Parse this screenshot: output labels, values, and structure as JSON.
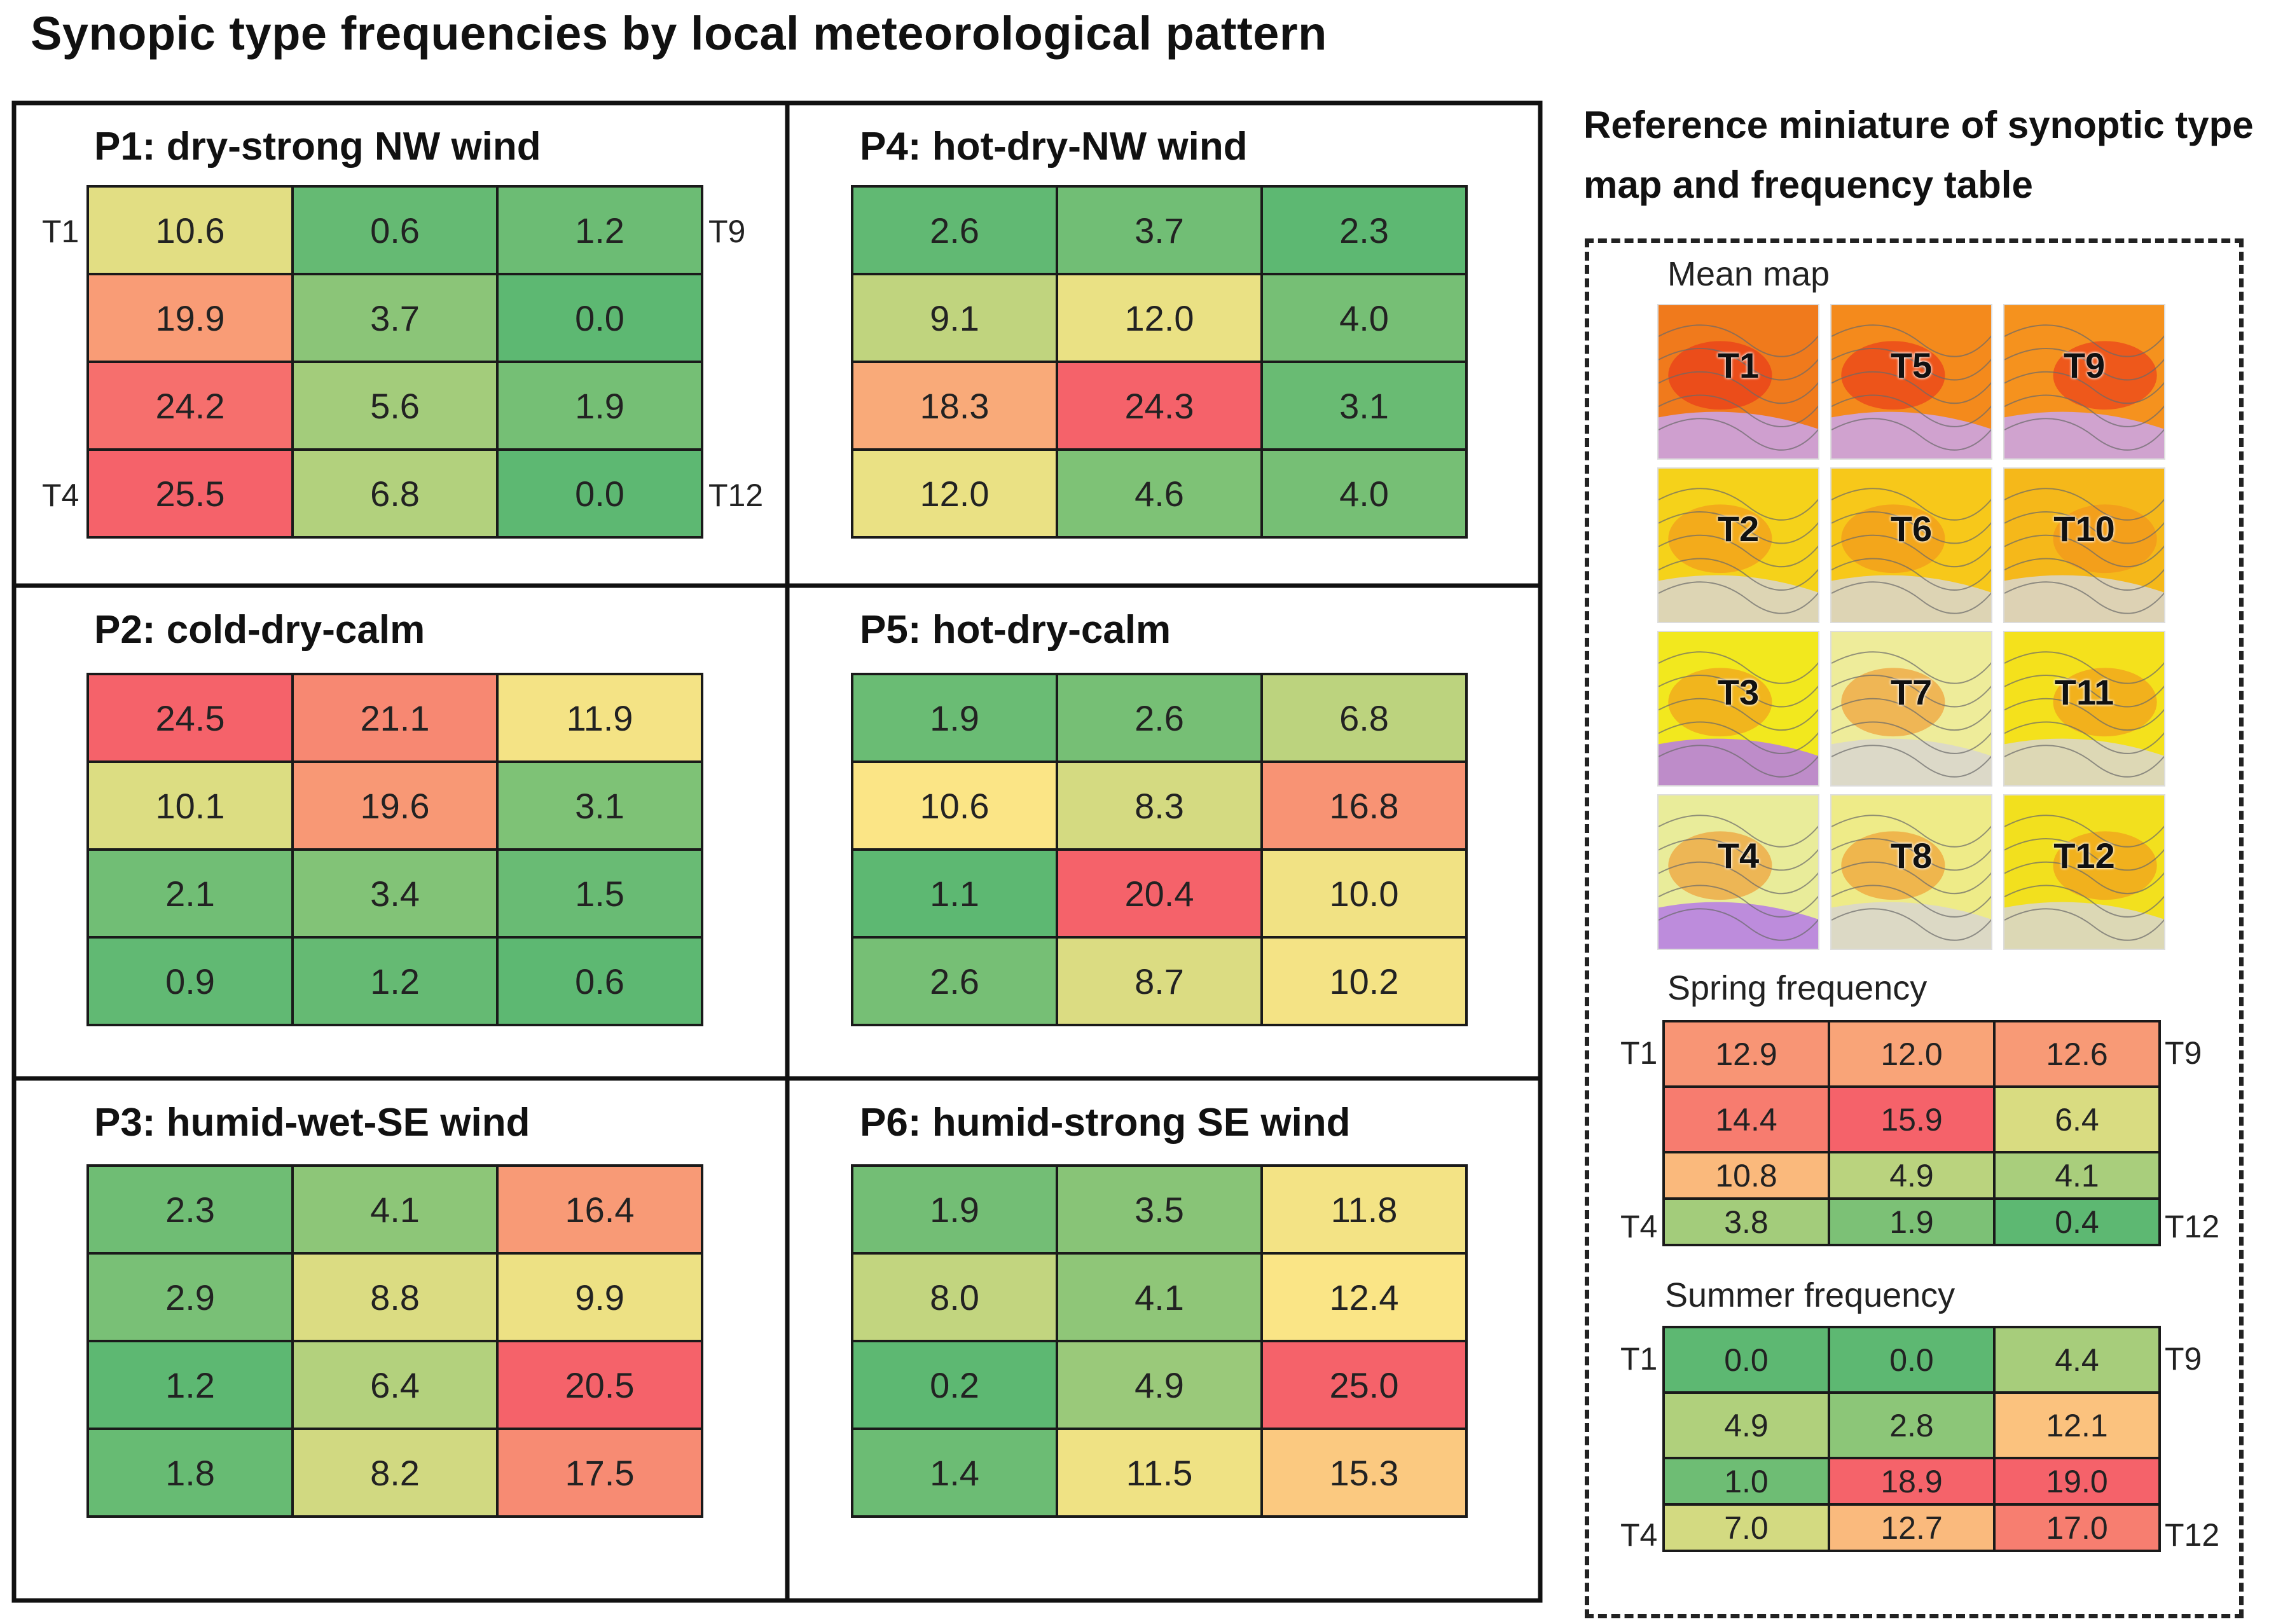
{
  "title": "Synopic type frequencies by local meteorological pattern",
  "reference": {
    "title_line1": "Reference miniature  of synoptic type",
    "title_line2": "map and frequency table",
    "mean_map_label": "Mean map",
    "spring_label": "Spring frequency",
    "summer_label": "Summer frequency"
  },
  "corner_labels": {
    "top_left": "T1",
    "top_right": "T9",
    "bottom_left": "T4",
    "bottom_right": "T12"
  },
  "mini_maps": [
    [
      "T1",
      "T5",
      "T9"
    ],
    [
      "T2",
      "T6",
      "T10"
    ],
    [
      "T3",
      "T7",
      "T11"
    ],
    [
      "T4",
      "T8",
      "T12"
    ]
  ],
  "mini_map_colors": [
    [
      "#f07a1c",
      "#f48a1c",
      "#f5921e"
    ],
    [
      "#f5d21a",
      "#f7c81a",
      "#f5b81a"
    ],
    [
      "#f2e81e",
      "#eeec9a",
      "#f4e11c"
    ],
    [
      "#e9ec9a",
      "#eeeb88",
      "#f2e01e"
    ]
  ],
  "colors": {
    "low": "#5db872",
    "mid": "#fde686",
    "high": "#f5626a"
  },
  "chart_data": [
    {
      "type": "heatmap",
      "id": "P1",
      "title": "P1: dry-strong NW wind",
      "rows": 4,
      "cols": 3,
      "show_corner_labels": true,
      "values": [
        [
          10.6,
          0.6,
          1.2
        ],
        [
          19.9,
          3.7,
          0.0
        ],
        [
          24.2,
          5.6,
          1.9
        ],
        [
          25.5,
          6.8,
          0.0
        ]
      ]
    },
    {
      "type": "heatmap",
      "id": "P4",
      "title": "P4: hot-dry-NW wind",
      "rows": 4,
      "cols": 3,
      "values": [
        [
          2.6,
          3.7,
          2.3
        ],
        [
          9.1,
          12.0,
          4.0
        ],
        [
          18.3,
          24.3,
          3.1
        ],
        [
          12.0,
          4.6,
          4.0
        ]
      ]
    },
    {
      "type": "heatmap",
      "id": "P2",
      "title": "P2: cold-dry-calm",
      "rows": 4,
      "cols": 3,
      "values": [
        [
          24.5,
          21.1,
          11.9
        ],
        [
          10.1,
          19.6,
          3.1
        ],
        [
          2.1,
          3.4,
          1.5
        ],
        [
          0.9,
          1.2,
          0.6
        ]
      ]
    },
    {
      "type": "heatmap",
      "id": "P5",
      "title": "P5: hot-dry-calm",
      "rows": 4,
      "cols": 3,
      "values": [
        [
          1.9,
          2.6,
          6.8
        ],
        [
          10.6,
          8.3,
          16.8
        ],
        [
          1.1,
          20.4,
          10.0
        ],
        [
          2.6,
          8.7,
          10.2
        ]
      ]
    },
    {
      "type": "heatmap",
      "id": "P3",
      "title": "P3: humid-wet-SE wind",
      "rows": 4,
      "cols": 3,
      "values": [
        [
          2.3,
          4.1,
          16.4
        ],
        [
          2.9,
          8.8,
          9.9
        ],
        [
          1.2,
          6.4,
          20.5
        ],
        [
          1.8,
          8.2,
          17.5
        ]
      ]
    },
    {
      "type": "heatmap",
      "id": "P6",
      "title": "P6: humid-strong SE wind",
      "rows": 4,
      "cols": 3,
      "values": [
        [
          1.9,
          3.5,
          11.8
        ],
        [
          8.0,
          4.1,
          12.4
        ],
        [
          0.2,
          4.9,
          25.0
        ],
        [
          1.4,
          11.5,
          15.3
        ]
      ]
    },
    {
      "type": "heatmap",
      "id": "spring",
      "title": "Spring frequency",
      "rows": 4,
      "cols": 3,
      "show_corner_labels": true,
      "values": [
        [
          12.9,
          12.0,
          12.6
        ],
        [
          14.4,
          15.9,
          6.4
        ],
        [
          10.8,
          4.9,
          4.1
        ],
        [
          3.8,
          1.9,
          0.4
        ]
      ]
    },
    {
      "type": "heatmap",
      "id": "summer",
      "title": "Summer frequency",
      "rows": 4,
      "cols": 3,
      "show_corner_labels": true,
      "values": [
        [
          0.0,
          0.0,
          4.4
        ],
        [
          4.9,
          2.8,
          12.1
        ],
        [
          1.0,
          18.9,
          19.0
        ],
        [
          7.0,
          12.7,
          17.0
        ]
      ]
    }
  ]
}
